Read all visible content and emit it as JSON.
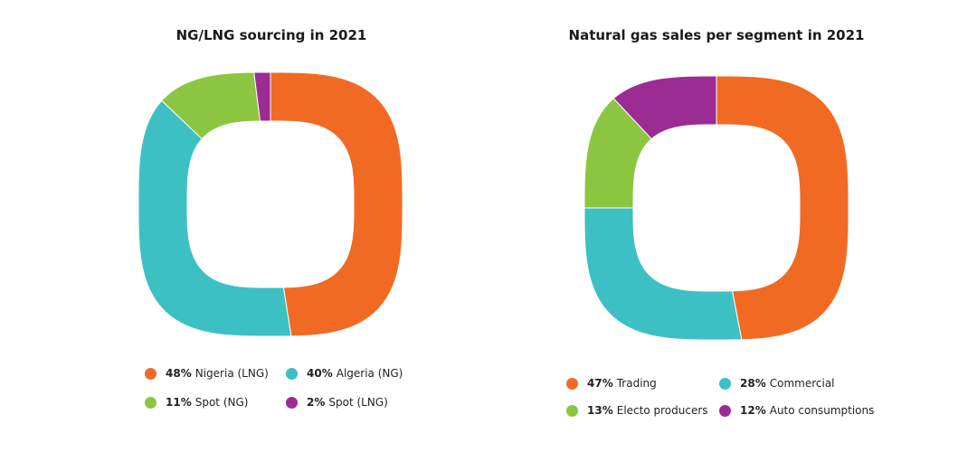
{
  "colors": {
    "orange": "#f16a24",
    "teal": "#3cc0c3",
    "green": "#8cc640",
    "purple": "#9b2c93"
  },
  "chart_data": [
    {
      "type": "pie",
      "title": "NG/LNG sourcing in 2021",
      "slices": [
        {
          "label": "Nigeria (LNG)",
          "percent_label": "48%",
          "value": 48,
          "color": "#f16a24"
        },
        {
          "label": "Algeria (NG)",
          "percent_label": "40%",
          "value": 40,
          "color": "#3cc0c3"
        },
        {
          "label": "Spot (NG)",
          "percent_label": "11%",
          "value": 11,
          "color": "#8cc640"
        },
        {
          "label": "Spot (LNG)",
          "percent_label": "2%",
          "value": 2,
          "color": "#9b2c93"
        }
      ],
      "legend_order": [
        0,
        1,
        2,
        3
      ],
      "legend_placement": "bottom"
    },
    {
      "type": "pie",
      "title": "Natural gas sales per segment in 2021",
      "slices": [
        {
          "label": "Trading",
          "percent_label": "47%",
          "value": 47,
          "color": "#f16a24"
        },
        {
          "label": "Commercial",
          "percent_label": "28%",
          "value": 28,
          "color": "#3cc0c3"
        },
        {
          "label": "Electo producers",
          "percent_label": "13%",
          "value": 13,
          "color": "#8cc640"
        },
        {
          "label": "Auto consumptions",
          "percent_label": "12%",
          "value": 12,
          "color": "#9b2c93"
        }
      ],
      "legend_order": [
        0,
        1,
        2,
        3
      ],
      "legend_placement": "bottom"
    }
  ]
}
